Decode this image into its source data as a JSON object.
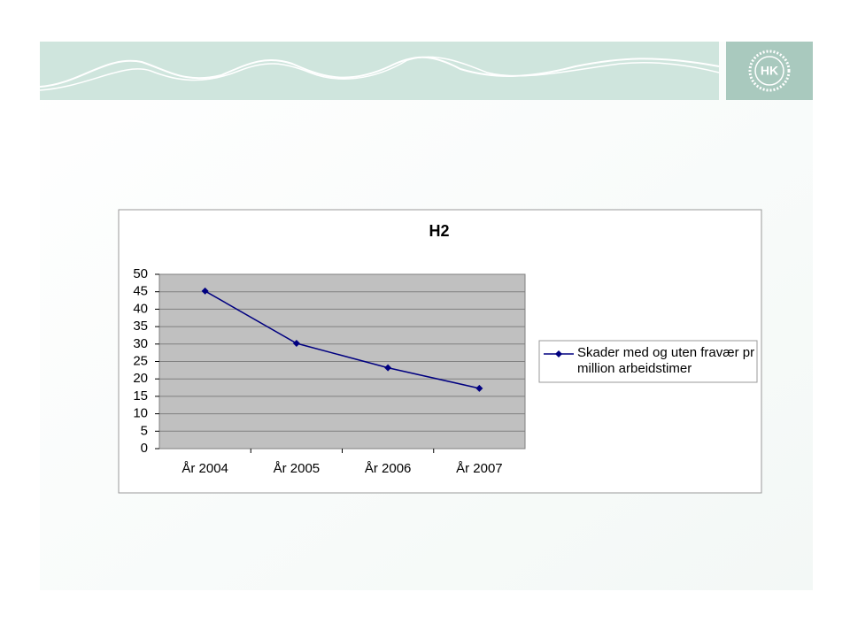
{
  "logo": {
    "text": "HK"
  },
  "chart_data": {
    "type": "line",
    "title": "H2",
    "categories": [
      "År 2004",
      "År 2005",
      "År 2006",
      "År 2007"
    ],
    "series": [
      {
        "name": "Skader med og uten fravær pr million arbeidstimer",
        "color": "#000080",
        "values": [
          45.2,
          30.2,
          23.2,
          17.3
        ]
      }
    ],
    "ylim": [
      0,
      50
    ],
    "yticks": [
      0,
      5,
      10,
      15,
      20,
      25,
      30,
      35,
      40,
      45,
      50
    ],
    "grid": true,
    "legend": "right"
  }
}
